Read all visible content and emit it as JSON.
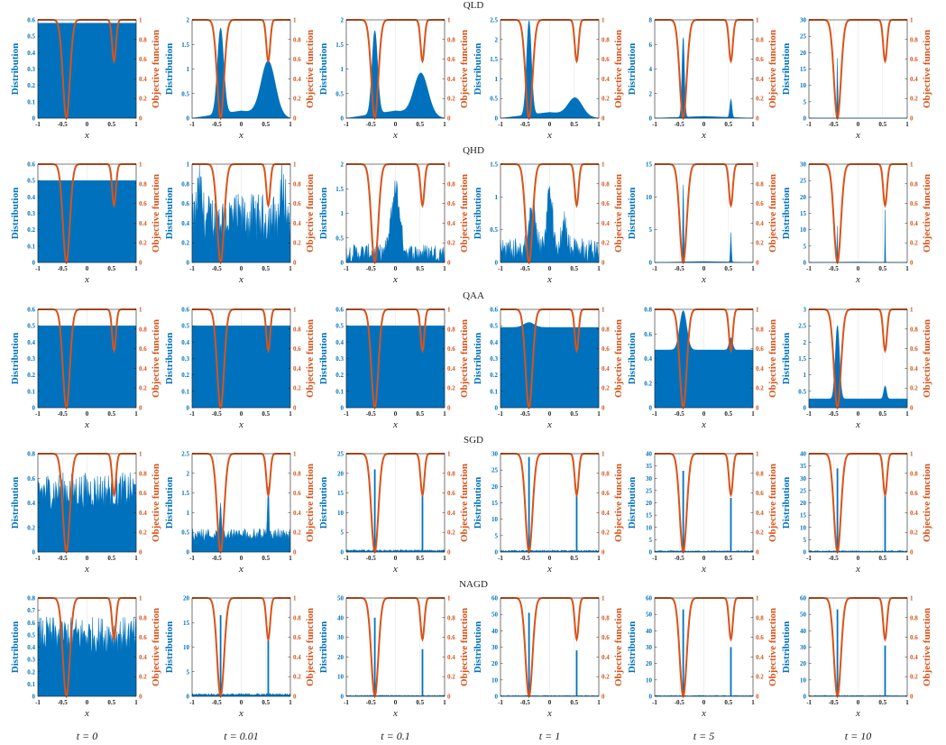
{
  "figure": {
    "column_labels": [
      "t = 0",
      "t = 0.01",
      "t = 0.1",
      "t = 1",
      "t = 5",
      "t = 10"
    ],
    "row_titles": [
      "QLD",
      "QHD",
      "QAA",
      "SGD",
      "NAGD"
    ],
    "left_axis_label": "Distribution",
    "right_axis_label": "Objective function",
    "x_axis_label": "x",
    "colors": {
      "distribution": "#0072BD",
      "objective": "#D95319"
    }
  },
  "chart_data": {
    "type": "area",
    "xlim": [
      -1,
      1
    ],
    "x_ticks": [
      "-1",
      "-0.5",
      "0",
      "0.5",
      "1"
    ],
    "grid": true,
    "objective_function": {
      "ylim": [
        0,
        1
      ],
      "ticks": [
        "0",
        "0.2",
        "0.4",
        "0.6",
        "0.8",
        "1"
      ],
      "wells": [
        {
          "center": -0.42,
          "min_value": 0.0,
          "width": 0.1
        },
        {
          "center": 0.55,
          "min_value": 0.58,
          "width": 0.055
        }
      ]
    },
    "panels": [
      {
        "row": "QLD",
        "time": "t = 0",
        "kind": "flat",
        "level": 0.58,
        "ylim": [
          0,
          0.6
        ],
        "yticks": [
          "0",
          "0.1",
          "0.2",
          "0.3",
          "0.4",
          "0.5",
          "0.6"
        ]
      },
      {
        "row": "QLD",
        "time": "t = 0.01",
        "kind": "bimodal",
        "peaks": [
          {
            "x": -0.42,
            "h": 1.75,
            "w": 0.09
          },
          {
            "x": 0.55,
            "h": 1.1,
            "w": 0.2
          }
        ],
        "ylim": [
          0,
          2
        ],
        "yticks": [
          "0",
          "0.5",
          "1",
          "1.5",
          "2"
        ]
      },
      {
        "row": "QLD",
        "time": "t = 0.1",
        "kind": "bimodal",
        "peaks": [
          {
            "x": -0.42,
            "h": 1.7,
            "w": 0.08
          },
          {
            "x": 0.52,
            "h": 0.85,
            "w": 0.2
          }
        ],
        "ylim": [
          0,
          2
        ],
        "yticks": [
          "0",
          "0.5",
          "1",
          "1.5",
          "2"
        ]
      },
      {
        "row": "QLD",
        "time": "t = 1",
        "kind": "bimodal",
        "peaks": [
          {
            "x": -0.42,
            "h": 2.4,
            "w": 0.07
          },
          {
            "x": 0.52,
            "h": 0.45,
            "w": 0.2
          }
        ],
        "ylim": [
          0,
          2.5
        ],
        "yticks": [
          "0",
          "0.5",
          "1",
          "1.5",
          "2",
          "2.5"
        ]
      },
      {
        "row": "QLD",
        "time": "t = 5",
        "kind": "bimodal",
        "peaks": [
          {
            "x": -0.42,
            "h": 6.6,
            "w": 0.035
          },
          {
            "x": 0.55,
            "h": 1.5,
            "w": 0.03
          }
        ],
        "ylim": [
          0,
          8
        ],
        "yticks": [
          "0",
          "2",
          "4",
          "6",
          "8"
        ]
      },
      {
        "row": "QLD",
        "time": "t = 10",
        "kind": "bimodal",
        "peaks": [
          {
            "x": -0.42,
            "h": 27,
            "w": 0.008
          }
        ],
        "ylim": [
          0,
          30
        ],
        "yticks": [
          "0",
          "5",
          "10",
          "15",
          "20",
          "25",
          "30"
        ]
      },
      {
        "row": "QHD",
        "time": "t = 0",
        "kind": "flat",
        "level": 0.5,
        "ylim": [
          0,
          0.6
        ],
        "yticks": [
          "0",
          "0.1",
          "0.2",
          "0.3",
          "0.4",
          "0.5",
          "0.6"
        ]
      },
      {
        "row": "QHD",
        "time": "t = 0.01",
        "kind": "noisy",
        "base": 0.45,
        "amp": 0.25,
        "peaks": [
          {
            "x": -0.85,
            "h": 0.4,
            "w": 0.06
          },
          {
            "x": 0.85,
            "h": 0.4,
            "w": 0.06
          }
        ],
        "ylim": [
          0,
          1
        ],
        "yticks": [
          "0",
          "0.2",
          "0.4",
          "0.6",
          "0.8",
          "1"
        ]
      },
      {
        "row": "QHD",
        "time": "t = 0.1",
        "kind": "noisy",
        "base": 0.2,
        "amp": 0.18,
        "peaks": [
          {
            "x": 0.0,
            "h": 1.5,
            "w": 0.12
          }
        ],
        "ylim": [
          0,
          2
        ],
        "yticks": [
          "0",
          "0.5",
          "1",
          "1.5",
          "2"
        ]
      },
      {
        "row": "QHD",
        "time": "t = 1",
        "kind": "noisy",
        "base": 0.2,
        "amp": 0.18,
        "peaks": [
          {
            "x": -0.35,
            "h": 0.7,
            "w": 0.1
          },
          {
            "x": 0.0,
            "h": 1.1,
            "w": 0.08
          },
          {
            "x": 0.3,
            "h": 0.45,
            "w": 0.08
          }
        ],
        "ylim": [
          0,
          1.5
        ],
        "yticks": [
          "0",
          "0.5",
          "1",
          "1.5"
        ]
      },
      {
        "row": "QHD",
        "time": "t = 5",
        "kind": "bimodal",
        "peaks": [
          {
            "x": -0.42,
            "h": 14,
            "w": 0.012
          },
          {
            "x": 0.55,
            "h": 4.5,
            "w": 0.015
          }
        ],
        "ylim": [
          0,
          15
        ],
        "yticks": [
          "0",
          "5",
          "10",
          "15"
        ]
      },
      {
        "row": "QHD",
        "time": "t = 10",
        "kind": "bimodal",
        "peaks": [
          {
            "x": -0.42,
            "h": 30,
            "w": 0.005
          },
          {
            "x": 0.55,
            "h": 16,
            "w": 0.006
          }
        ],
        "ylim": [
          0,
          30
        ],
        "yticks": [
          "0",
          "5",
          "10",
          "15",
          "20",
          "25",
          "30"
        ]
      },
      {
        "row": "QAA",
        "time": "t = 0",
        "kind": "flat",
        "level": 0.5,
        "ylim": [
          0,
          0.6
        ],
        "yticks": [
          "0",
          "0.1",
          "0.2",
          "0.3",
          "0.4",
          "0.5",
          "0.6"
        ]
      },
      {
        "row": "QAA",
        "time": "t = 0.01",
        "kind": "flat",
        "level": 0.5,
        "ylim": [
          0,
          0.6
        ],
        "yticks": [
          "0",
          "0.1",
          "0.2",
          "0.3",
          "0.4",
          "0.5",
          "0.6"
        ]
      },
      {
        "row": "QAA",
        "time": "t = 0.1",
        "kind": "flat",
        "level": 0.5,
        "ylim": [
          0,
          0.6
        ],
        "yticks": [
          "0",
          "0.1",
          "0.2",
          "0.3",
          "0.4",
          "0.5",
          "0.6"
        ]
      },
      {
        "row": "QAA",
        "time": "t = 1",
        "kind": "bimodal",
        "base": 0.49,
        "peaks": [
          {
            "x": -0.42,
            "h": 0.03,
            "w": 0.15
          }
        ],
        "ylim": [
          0,
          0.6
        ],
        "yticks": [
          "0",
          "0.1",
          "0.2",
          "0.3",
          "0.4",
          "0.5",
          "0.6"
        ]
      },
      {
        "row": "QAA",
        "time": "t = 5",
        "kind": "bimodal",
        "base": 0.47,
        "peaks": [
          {
            "x": -0.42,
            "h": 0.32,
            "w": 0.1
          },
          {
            "x": 0.55,
            "h": 0.1,
            "w": 0.05
          }
        ],
        "ylim": [
          0,
          0.8
        ],
        "yticks": [
          "0",
          "0.2",
          "0.4",
          "0.6",
          "0.8"
        ]
      },
      {
        "row": "QAA",
        "time": "t = 10",
        "kind": "bimodal",
        "base": 0.27,
        "peaks": [
          {
            "x": -0.42,
            "h": 2.25,
            "w": 0.06
          },
          {
            "x": 0.55,
            "h": 0.4,
            "w": 0.04
          }
        ],
        "ylim": [
          0,
          3
        ],
        "yticks": [
          "0",
          "0.5",
          "1",
          "1.5",
          "2",
          "2.5",
          "3"
        ]
      },
      {
        "row": "SGD",
        "time": "t = 0",
        "kind": "noisy",
        "base": 0.5,
        "amp": 0.15,
        "peaks": [],
        "ylim": [
          0,
          0.8
        ],
        "yticks": [
          "0",
          "0.2",
          "0.4",
          "0.6",
          "0.8"
        ]
      },
      {
        "row": "SGD",
        "time": "t = 0.01",
        "kind": "noisy",
        "base": 0.45,
        "amp": 0.15,
        "peaks": [
          {
            "x": -0.42,
            "h": 1.1,
            "w": 0.02
          },
          {
            "x": 0.55,
            "h": 1.5,
            "w": 0.02
          }
        ],
        "ylim": [
          0,
          2.5
        ],
        "yticks": [
          "0",
          "0.5",
          "1",
          "1.5",
          "2",
          "2.5"
        ]
      },
      {
        "row": "SGD",
        "time": "t = 0.1",
        "kind": "spikes",
        "base": 0.4,
        "spikes": [
          {
            "x": -0.42,
            "h": 21
          },
          {
            "x": 0.55,
            "h": 15
          }
        ],
        "ylim": [
          0,
          25
        ],
        "yticks": [
          "0",
          "5",
          "10",
          "15",
          "20",
          "25"
        ]
      },
      {
        "row": "SGD",
        "time": "t = 1",
        "kind": "spikes",
        "base": 0.4,
        "spikes": [
          {
            "x": -0.42,
            "h": 29
          },
          {
            "x": 0.55,
            "h": 19
          }
        ],
        "ylim": [
          0,
          30
        ],
        "yticks": [
          "0",
          "5",
          "10",
          "15",
          "20",
          "25",
          "30"
        ]
      },
      {
        "row": "SGD",
        "time": "t = 5",
        "kind": "spikes",
        "base": 0.4,
        "spikes": [
          {
            "x": -0.42,
            "h": 33
          },
          {
            "x": 0.55,
            "h": 22
          }
        ],
        "ylim": [
          0,
          40
        ],
        "yticks": [
          "0",
          "5",
          "10",
          "15",
          "20",
          "25",
          "30",
          "35",
          "40"
        ]
      },
      {
        "row": "SGD",
        "time": "t = 10",
        "kind": "spikes",
        "base": 0.4,
        "spikes": [
          {
            "x": -0.42,
            "h": 34
          },
          {
            "x": 0.55,
            "h": 23
          }
        ],
        "ylim": [
          0,
          40
        ],
        "yticks": [
          "0",
          "5",
          "10",
          "15",
          "20",
          "25",
          "30",
          "35",
          "40"
        ]
      },
      {
        "row": "NAGD",
        "time": "t = 0",
        "kind": "noisy",
        "base": 0.5,
        "amp": 0.15,
        "peaks": [],
        "ylim": [
          0,
          0.8
        ],
        "yticks": [
          "0",
          "0.1",
          "0.2",
          "0.3",
          "0.4",
          "0.5",
          "0.6",
          "0.7",
          "0.8"
        ]
      },
      {
        "row": "NAGD",
        "time": "t = 0.01",
        "kind": "spikes",
        "base": 0.4,
        "spikes": [
          {
            "x": -0.42,
            "h": 16.5
          },
          {
            "x": 0.55,
            "h": 12
          }
        ],
        "ylim": [
          0,
          20
        ],
        "yticks": [
          "0",
          "5",
          "10",
          "15",
          "20"
        ]
      },
      {
        "row": "NAGD",
        "time": "t = 0.1",
        "kind": "spikes",
        "base": 0.4,
        "spikes": [
          {
            "x": -0.42,
            "h": 40
          },
          {
            "x": 0.55,
            "h": 24
          }
        ],
        "ylim": [
          0,
          50
        ],
        "yticks": [
          "0",
          "10",
          "20",
          "30",
          "40",
          "50"
        ]
      },
      {
        "row": "NAGD",
        "time": "t = 1",
        "kind": "spikes",
        "base": 0.4,
        "spikes": [
          {
            "x": -0.42,
            "h": 51
          },
          {
            "x": 0.55,
            "h": 28
          }
        ],
        "ylim": [
          0,
          60
        ],
        "yticks": [
          "0",
          "10",
          "20",
          "30",
          "40",
          "50",
          "60"
        ]
      },
      {
        "row": "NAGD",
        "time": "t = 5",
        "kind": "spikes",
        "base": 0.4,
        "spikes": [
          {
            "x": -0.42,
            "h": 53
          },
          {
            "x": 0.55,
            "h": 30
          }
        ],
        "ylim": [
          0,
          60
        ],
        "yticks": [
          "0",
          "10",
          "20",
          "30",
          "40",
          "50",
          "60"
        ]
      },
      {
        "row": "NAGD",
        "time": "t = 10",
        "kind": "spikes",
        "base": 0.4,
        "spikes": [
          {
            "x": -0.42,
            "h": 53
          },
          {
            "x": 0.55,
            "h": 31
          }
        ],
        "ylim": [
          0,
          60
        ],
        "yticks": [
          "0",
          "10",
          "20",
          "30",
          "40",
          "50",
          "60"
        ]
      }
    ]
  }
}
